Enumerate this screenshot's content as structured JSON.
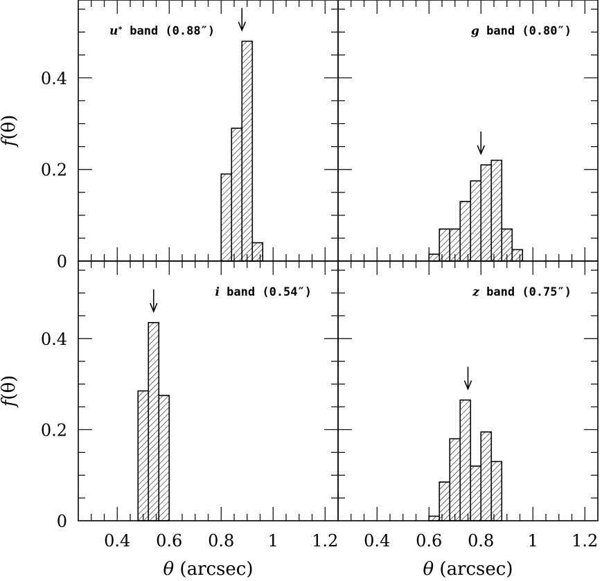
{
  "chart_data": [
    {
      "type": "bar",
      "panel": "top-left",
      "band_label": "u* band (0.88″)",
      "label_parts": {
        "letter": "u",
        "sup": "*",
        "rest": " band (0.88″)"
      },
      "label_align": "left",
      "arrow_at": 0.88,
      "bin_width": 0.04,
      "bin_starts": [
        0.8,
        0.84,
        0.88,
        0.92
      ],
      "values": [
        0.19,
        0.29,
        0.48,
        0.04
      ],
      "xlim": [
        0.25,
        1.25
      ],
      "ylim": [
        0,
        0.57
      ]
    },
    {
      "type": "bar",
      "panel": "top-right",
      "band_label": "g band (0.80″)",
      "label_parts": {
        "letter": "g",
        "sup": "",
        "rest": " band (0.80″)"
      },
      "label_align": "right",
      "arrow_at": 0.8,
      "bin_width": 0.04,
      "bin_starts": [
        0.6,
        0.64,
        0.68,
        0.72,
        0.76,
        0.8,
        0.84,
        0.88,
        0.92
      ],
      "values": [
        0.015,
        0.07,
        0.07,
        0.13,
        0.175,
        0.21,
        0.22,
        0.07,
        0.025
      ],
      "xlim": [
        0.25,
        1.25
      ],
      "ylim": [
        0,
        0.57
      ]
    },
    {
      "type": "bar",
      "panel": "bottom-left",
      "band_label": "i band (0.54″)",
      "label_parts": {
        "letter": "i",
        "sup": "",
        "rest": " band (0.54″)"
      },
      "label_align": "right",
      "arrow_at": 0.54,
      "bin_width": 0.04,
      "bin_starts": [
        0.48,
        0.52,
        0.56
      ],
      "values": [
        0.285,
        0.435,
        0.275
      ],
      "xlim": [
        0.25,
        1.25
      ],
      "ylim": [
        0,
        0.57
      ]
    },
    {
      "type": "bar",
      "panel": "bottom-right",
      "band_label": "z band (0.75″)",
      "label_parts": {
        "letter": "z",
        "sup": "",
        "rest": " band (0.75″)"
      },
      "label_align": "right",
      "arrow_at": 0.75,
      "bin_width": 0.04,
      "bin_starts": [
        0.6,
        0.64,
        0.68,
        0.72,
        0.76,
        0.8,
        0.84
      ],
      "values": [
        0.01,
        0.085,
        0.18,
        0.265,
        0.12,
        0.195,
        0.13
      ],
      "xlim": [
        0.25,
        1.25
      ],
      "ylim": [
        0,
        0.57
      ]
    }
  ],
  "axes": {
    "y_label": "f(θ)",
    "y_label_parts": {
      "f": "f",
      "rest": "(θ)"
    },
    "x_label": "θ (arcsec)",
    "x_label_parts": {
      "theta": "θ",
      "rest": " (arcsec)"
    },
    "y_tick_values": [
      0,
      0.2,
      0.4
    ],
    "y_tick_labels": [
      "0",
      "0.2",
      "0.4"
    ],
    "x_tick_values": [
      0.4,
      0.6,
      0.8,
      1.0,
      1.2
    ],
    "x_tick_labels": [
      "0.4",
      "0.6",
      "0.8",
      "1",
      "1.2"
    ],
    "x_minor_step": 0.05,
    "y_minor_step": 0.05
  }
}
